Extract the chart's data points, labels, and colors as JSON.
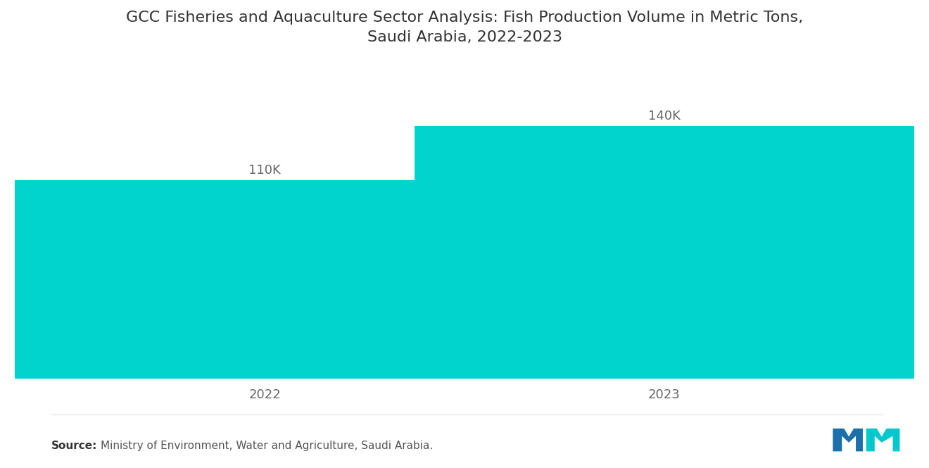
{
  "title": "GCC Fisheries and Aquaculture Sector Analysis: Fish Production Volume in Metric Tons,\nSaudi Arabia, 2022-2023",
  "categories": [
    "2022",
    "2023"
  ],
  "values": [
    110000,
    140000
  ],
  "labels": [
    "110K",
    "140K"
  ],
  "bar_color": "#00D4CC",
  "background_color": "#ffffff",
  "title_fontsize": 16,
  "label_fontsize": 13,
  "tick_fontsize": 13,
  "source_text": "Ministry of Environment, Water and Agriculture, Saudi Arabia.",
  "source_label": "Source:",
  "ylim": [
    0,
    175000
  ],
  "bar_width": 0.55,
  "x_positions": [
    0.28,
    0.72
  ],
  "logo_blue": "#1B6FAA",
  "logo_teal": "#00C8CC"
}
